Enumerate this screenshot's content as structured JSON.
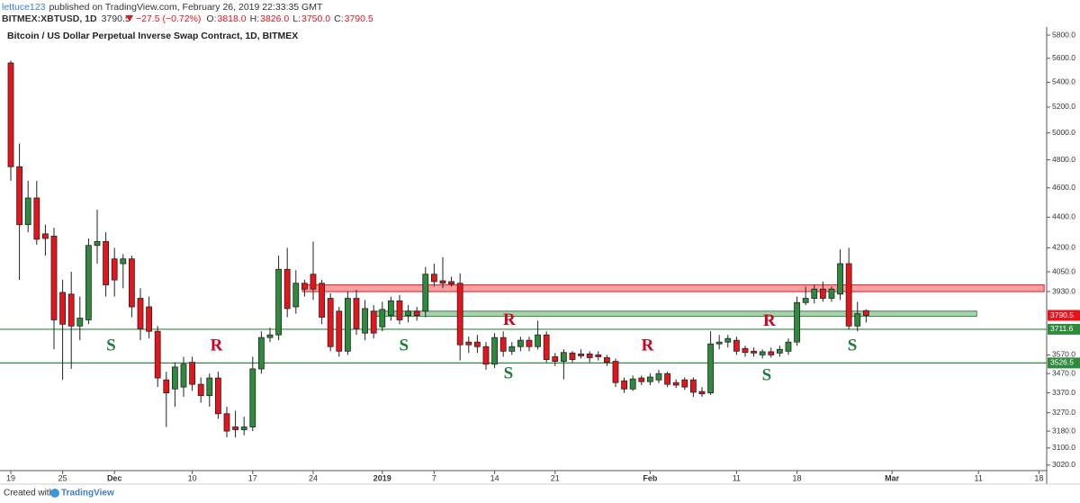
{
  "header": {
    "author": "lettuce123",
    "published": "published on TradingView.com, February 26, 2019 22:33:35 GMT",
    "symbol": "BITMEX:XBTUSD, 1D",
    "change": "−27.5 (−0.72%)",
    "ohlc": [
      {
        "label": "O:",
        "value": "3818.0"
      },
      {
        "label": "H:",
        "value": "3826.0"
      },
      {
        "label": "L:",
        "value": "3750.0"
      },
      {
        "label": "C:",
        "value": "3790.5"
      }
    ]
  },
  "footer": {
    "text": "Created with",
    "brand": "TradingView"
  },
  "chart_data": {
    "type": "candlestick",
    "title": "Bitcoin / US Dollar Perpetual Inverse Swap Contract, 1D, BITMEX",
    "log_scale": true,
    "up_color": "#2e8b3e",
    "down_color": "#e8141b",
    "xlim": [
      -1.25,
      119.9
    ],
    "ylim": [
      2995,
      5872
    ],
    "xticks": [
      {
        "value": 0,
        "label": "19"
      },
      {
        "value": 6,
        "label": "25"
      },
      {
        "value": 12,
        "label": "Dec"
      },
      {
        "value": 21,
        "label": "10"
      },
      {
        "value": 28,
        "label": "17"
      },
      {
        "value": 35,
        "label": "24"
      },
      {
        "value": 43,
        "label": "2019"
      },
      {
        "value": 49,
        "label": "7"
      },
      {
        "value": 56,
        "label": "14"
      },
      {
        "value": 63,
        "label": "21"
      },
      {
        "value": 74,
        "label": "Feb"
      },
      {
        "value": 84,
        "label": "11"
      },
      {
        "value": 91,
        "label": "18"
      },
      {
        "value": 102,
        "label": "Mar"
      },
      {
        "value": 112,
        "label": "11"
      },
      {
        "value": 119,
        "label": "18"
      }
    ],
    "yticks": [
      {
        "value": 5800,
        "label": "5800.0"
      },
      {
        "value": 5600,
        "label": "5600.0"
      },
      {
        "value": 5400,
        "label": "5400.0"
      },
      {
        "value": 5200,
        "label": "5200.0"
      },
      {
        "value": 5000,
        "label": "5000.0"
      },
      {
        "value": 4800,
        "label": "4800.0"
      },
      {
        "value": 4600,
        "label": "4600.0"
      },
      {
        "value": 4400,
        "label": "4400.0"
      },
      {
        "value": 4200,
        "label": "4200.0"
      },
      {
        "value": 4050,
        "label": "4050.0"
      },
      {
        "value": 3930,
        "label": "3930.0"
      },
      {
        "value": 3570,
        "label": "3570.0"
      },
      {
        "value": 3470,
        "label": "3470.0"
      },
      {
        "value": 3370,
        "label": "3370.0"
      },
      {
        "value": 3270,
        "label": "3270.0"
      },
      {
        "value": 3180,
        "label": "3180.0"
      },
      {
        "value": 3100,
        "label": "3100.0"
      },
      {
        "value": 3020,
        "label": "3020.0"
      }
    ],
    "open": [
      5560,
      4750,
      4350,
      4530,
      4290,
      4275,
      3925,
      3915,
      3730,
      3765,
      4215,
      4240,
      4130,
      4100,
      4130,
      3890,
      3840,
      3700,
      3437,
      3390,
      3400,
      3530,
      3414,
      3356,
      3447,
      3265,
      3200,
      3187,
      3200,
      3495,
      3665,
      3680,
      4065,
      3840,
      3980,
      4035,
      3980,
      3890,
      3815,
      3590,
      3890,
      3690,
      3815,
      3725,
      3790,
      3875,
      3790,
      3815,
      3815,
      4035,
      3995,
      3990,
      3980,
      3640,
      3640,
      3615,
      3520,
      3665,
      3590,
      3615,
      3650,
      3615,
      3680,
      3560,
      3535,
      3580,
      3575,
      3575,
      3570,
      3555,
      3535,
      3432,
      3390,
      3447,
      3428,
      3437,
      3470,
      3423,
      3437,
      3437,
      3377,
      3370,
      3630,
      3640,
      3650,
      3605,
      3590,
      3570,
      3587,
      3580,
      3590,
      3640,
      3865,
      3890,
      3945,
      3890,
      3915,
      4100,
      3730,
      3818
    ],
    "high": [
      5580,
      4920,
      4650,
      4650,
      4350,
      4330,
      4000,
      4050,
      3900,
      4260,
      4450,
      4300,
      4200,
      4160,
      4150,
      3950,
      3900,
      3730,
      3480,
      3530,
      3560,
      3560,
      3450,
      3470,
      3480,
      3300,
      3280,
      3250,
      3560,
      3700,
      3720,
      4150,
      4200,
      4060,
      4000,
      4240,
      4000,
      3920,
      3840,
      3930,
      3940,
      3880,
      3850,
      3870,
      3900,
      3910,
      3850,
      3840,
      4080,
      4100,
      4140,
      4020,
      4040,
      3670,
      3680,
      3640,
      3690,
      3700,
      3640,
      3670,
      3670,
      3760,
      3700,
      3580,
      3600,
      3590,
      3600,
      3590,
      3590,
      3570,
      3550,
      3450,
      3460,
      3460,
      3470,
      3490,
      3480,
      3440,
      3450,
      3450,
      3400,
      3700,
      3680,
      3680,
      3670,
      3620,
      3610,
      3600,
      3610,
      3620,
      3660,
      3900,
      3960,
      3970,
      3990,
      3960,
      4190,
      4200,
      3870,
      3826
    ],
    "low": [
      4650,
      4000,
      4300,
      4220,
      4150,
      3600,
      3437,
      3495,
      3650,
      3740,
      4100,
      3900,
      3900,
      3950,
      3780,
      3650,
      3660,
      3400,
      3200,
      3300,
      3350,
      3380,
      3320,
      3300,
      3240,
      3150,
      3150,
      3160,
      3180,
      3470,
      3640,
      3650,
      3780,
      3800,
      3900,
      3880,
      3740,
      3590,
      3560,
      3570,
      3680,
      3650,
      3660,
      3700,
      3760,
      3740,
      3750,
      3760,
      3780,
      3960,
      3950,
      3960,
      3540,
      3580,
      3580,
      3490,
      3500,
      3560,
      3570,
      3590,
      3590,
      3600,
      3530,
      3510,
      3440,
      3530,
      3550,
      3530,
      3540,
      3510,
      3400,
      3370,
      3380,
      3410,
      3410,
      3420,
      3400,
      3395,
      3385,
      3350,
      3350,
      3360,
      3600,
      3610,
      3570,
      3560,
      3560,
      3550,
      3555,
      3560,
      3570,
      3620,
      3850,
      3860,
      3870,
      3870,
      3880,
      3710,
      3700,
      3750
    ],
    "close": [
      4750,
      4350,
      4530,
      4255,
      4260,
      3765,
      3740,
      3730,
      3775,
      4215,
      4240,
      3970,
      4000,
      4130,
      3840,
      3715,
      3700,
      3447,
      3370,
      3505,
      3520,
      3414,
      3356,
      3447,
      3265,
      3180,
      3187,
      3200,
      3495,
      3665,
      3680,
      4065,
      3830,
      3980,
      3945,
      3945,
      3780,
      3615,
      3590,
      3890,
      3715,
      3830,
      3690,
      3825,
      3875,
      3765,
      3815,
      3790,
      4035,
      3990,
      3980,
      3975,
      3625,
      3625,
      3615,
      3520,
      3665,
      3590,
      3615,
      3650,
      3615,
      3680,
      3545,
      3535,
      3583,
      3545,
      3565,
      3555,
      3560,
      3530,
      3423,
      3390,
      3442,
      3428,
      3452,
      3470,
      3414,
      3410,
      3400,
      3373,
      3365,
      3630,
      3640,
      3660,
      3590,
      3583,
      3580,
      3587,
      3570,
      3600,
      3640,
      3865,
      3890,
      3945,
      3890,
      3945,
      4100,
      3730,
      3800,
      3790.5
    ],
    "last_price": {
      "value": 3790.5,
      "label": "3790.5",
      "color": "#e8141b"
    },
    "levels": [
      {
        "value": 3711.6,
        "label": "3711.6",
        "color": "#2e8b3e"
      },
      {
        "value": 3526.5,
        "label": "3526.5",
        "color": "#2e8b3e"
      }
    ],
    "zones": [
      {
        "from": 3930,
        "to": 3970,
        "x_start": 33.75,
        "x_end": 119.6,
        "color": "#e8141b"
      },
      {
        "from": 3785,
        "to": 3815,
        "x_start": 42.3,
        "x_end": 111.8,
        "color": "#2e8b3e"
      }
    ],
    "annotations": [
      {
        "text": "S",
        "x": 11.6,
        "y": 3615,
        "color": "#1e7b3a"
      },
      {
        "text": "R",
        "x": 23.8,
        "y": 3615,
        "color": "#d0021b"
      },
      {
        "text": "S",
        "x": 45.5,
        "y": 3615,
        "color": "#1e7b3a"
      },
      {
        "text": "R",
        "x": 57.7,
        "y": 3760,
        "color": "#d0021b"
      },
      {
        "text": "S",
        "x": 57.6,
        "y": 3465,
        "color": "#1e7b3a"
      },
      {
        "text": "R",
        "x": 73.7,
        "y": 3615,
        "color": "#d0021b"
      },
      {
        "text": "R",
        "x": 87.8,
        "y": 3755,
        "color": "#d0021b"
      },
      {
        "text": "S",
        "x": 87.5,
        "y": 3455,
        "color": "#1e7b3a"
      },
      {
        "text": "S",
        "x": 97.4,
        "y": 3615,
        "color": "#1e7b3a"
      }
    ]
  }
}
